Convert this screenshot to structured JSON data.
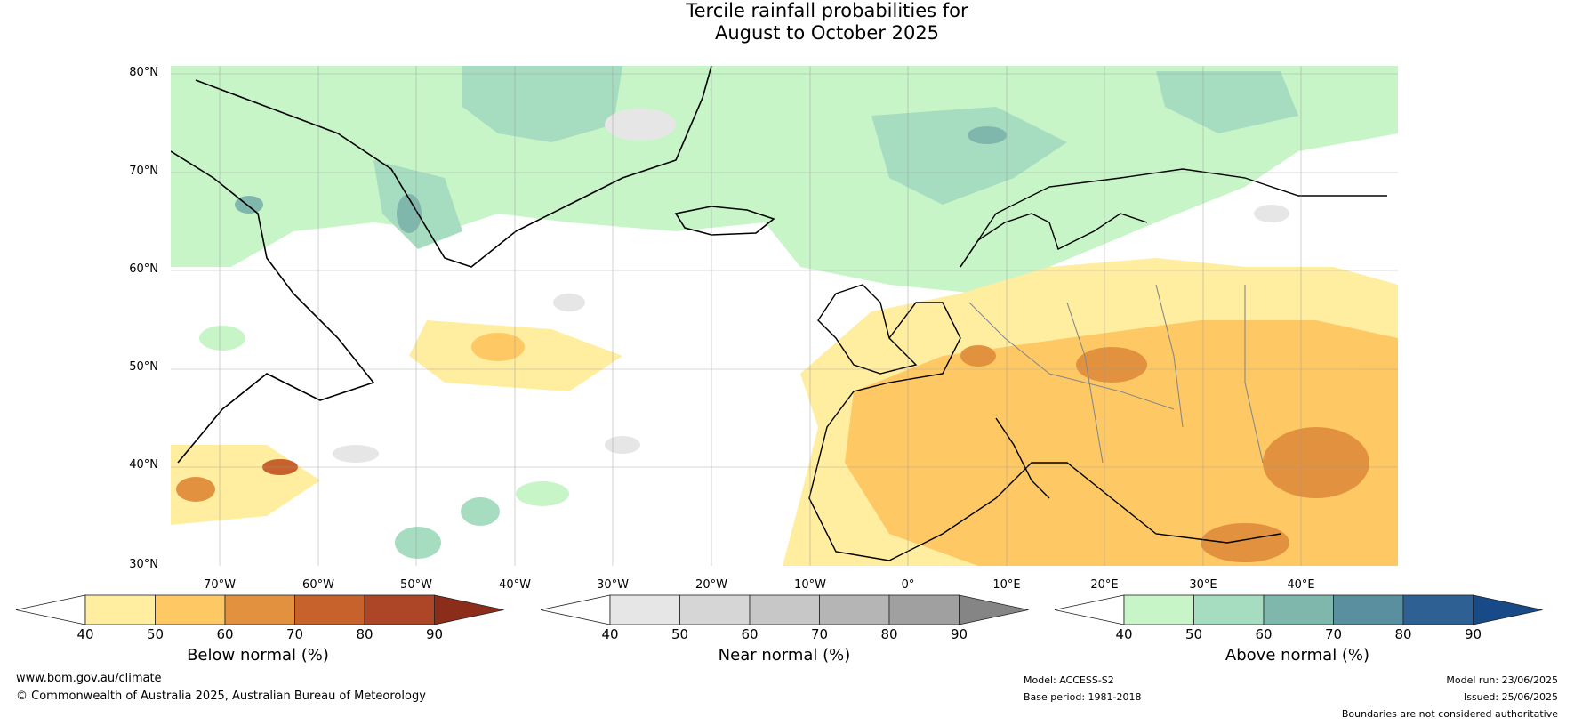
{
  "title": {
    "line1": "Tercile rainfall probabilities for",
    "line2": "August to October 2025"
  },
  "map": {
    "lat_labels": [
      "80°N",
      "70°N",
      "60°N",
      "50°N",
      "40°N",
      "30°N"
    ],
    "lon_labels": [
      "70°W",
      "60°W",
      "50°W",
      "40°W",
      "30°W",
      "20°W",
      "10°W",
      "0°",
      "10°E",
      "20°E",
      "30°E",
      "40°E"
    ]
  },
  "colorbars": [
    {
      "name": "Below normal (%)",
      "ticks": [
        "40",
        "50",
        "60",
        "70",
        "80",
        "90"
      ],
      "colors": [
        "#ffffff",
        "#ffeda0",
        "#fec965",
        "#e2913f",
        "#c8622d",
        "#ac4626",
        "#8c2d1b"
      ]
    },
    {
      "name": "Near normal (%)",
      "ticks": [
        "40",
        "50",
        "60",
        "70",
        "80",
        "90"
      ],
      "colors": [
        "#ffffff",
        "#e6e6e6",
        "#d6d6d6",
        "#c7c7c7",
        "#b5b5b5",
        "#a0a0a0",
        "#858585"
      ]
    },
    {
      "name": "Above normal (%)",
      "ticks": [
        "40",
        "50",
        "60",
        "70",
        "80",
        "90"
      ],
      "colors": [
        "#ffffff",
        "#c7f5c8",
        "#a6dcbf",
        "#80b7ac",
        "#5a8fa0",
        "#2f6094",
        "#174a86"
      ]
    }
  ],
  "footer": {
    "url": "www.bom.gov.au/climate",
    "copyright": "© Commonwealth of Australia 2025, Australian Bureau of Meteorology",
    "model": "Model: ACCESS-S2",
    "base_period": "Base period: 1981-2018",
    "model_run": "Model run: 23/06/2025",
    "issued": "Issued: 25/06/2025",
    "disclaimer": "Boundaries are not considered authoritative"
  }
}
